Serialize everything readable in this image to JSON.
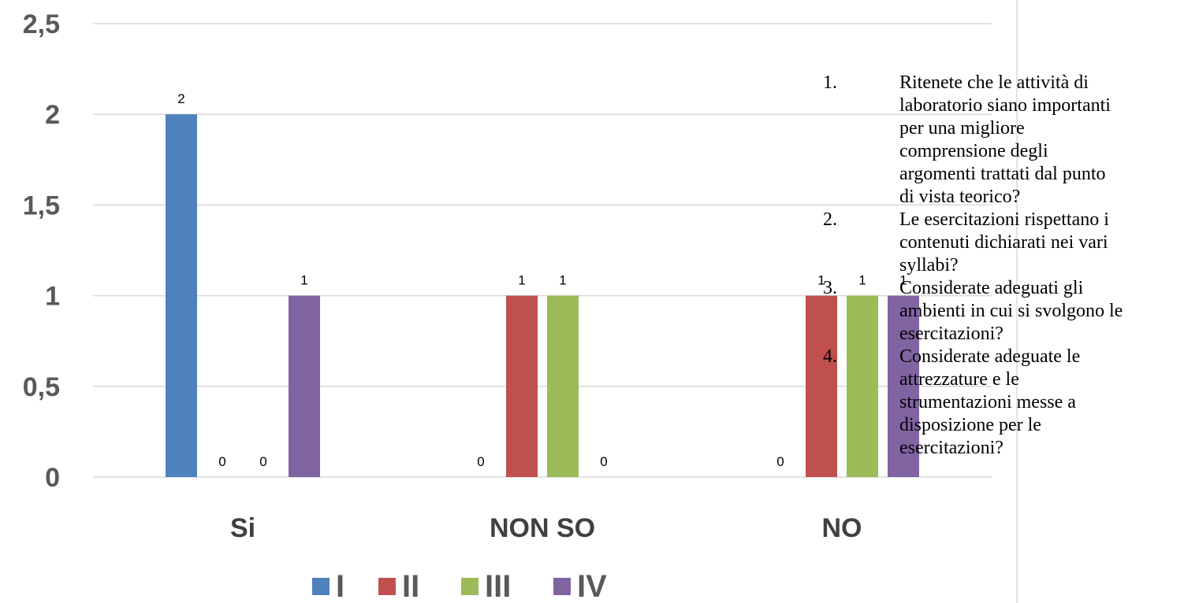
{
  "chart_data": {
    "type": "bar",
    "categories": [
      "Si",
      "NON SO",
      "NO"
    ],
    "series": [
      {
        "name": "I",
        "color": "#4F81BD",
        "values": [
          2,
          0,
          0
        ]
      },
      {
        "name": "II",
        "color": "#C0504D",
        "values": [
          0,
          1,
          1
        ]
      },
      {
        "name": "III",
        "color": "#9BBB59",
        "values": [
          0,
          1,
          1
        ]
      },
      {
        "name": "IV",
        "color": "#8064A2",
        "values": [
          1,
          0,
          1
        ]
      }
    ],
    "y_ticks": [
      "0",
      "0,5",
      "1",
      "1,5",
      "2",
      "2,5"
    ],
    "ylim": [
      0,
      2.5
    ],
    "grid": true,
    "legend_position": "bottom"
  },
  "notes": {
    "questions": [
      {
        "number": "1.",
        "lines": [
          "Ritenete che le attività di",
          "laboratorio siano importanti",
          "per una migliore",
          "comprensione degli",
          "argomenti trattati dal punto",
          "di vista teorico?"
        ]
      },
      {
        "number": "2.",
        "lines": [
          "Le esercitazioni rispettano i",
          "contenuti dichiarati nei vari",
          "syllabi?"
        ]
      },
      {
        "number": "3.",
        "lines": [
          "Considerate adeguati gli",
          "ambienti in cui si svolgono le",
          "esercitazioni?"
        ]
      },
      {
        "number": "4.",
        "lines": [
          "Considerate adeguate le",
          "attrezzature e le",
          "strumentazioni messe a",
          "disposizione per le",
          "esercitazioni?"
        ]
      }
    ]
  }
}
